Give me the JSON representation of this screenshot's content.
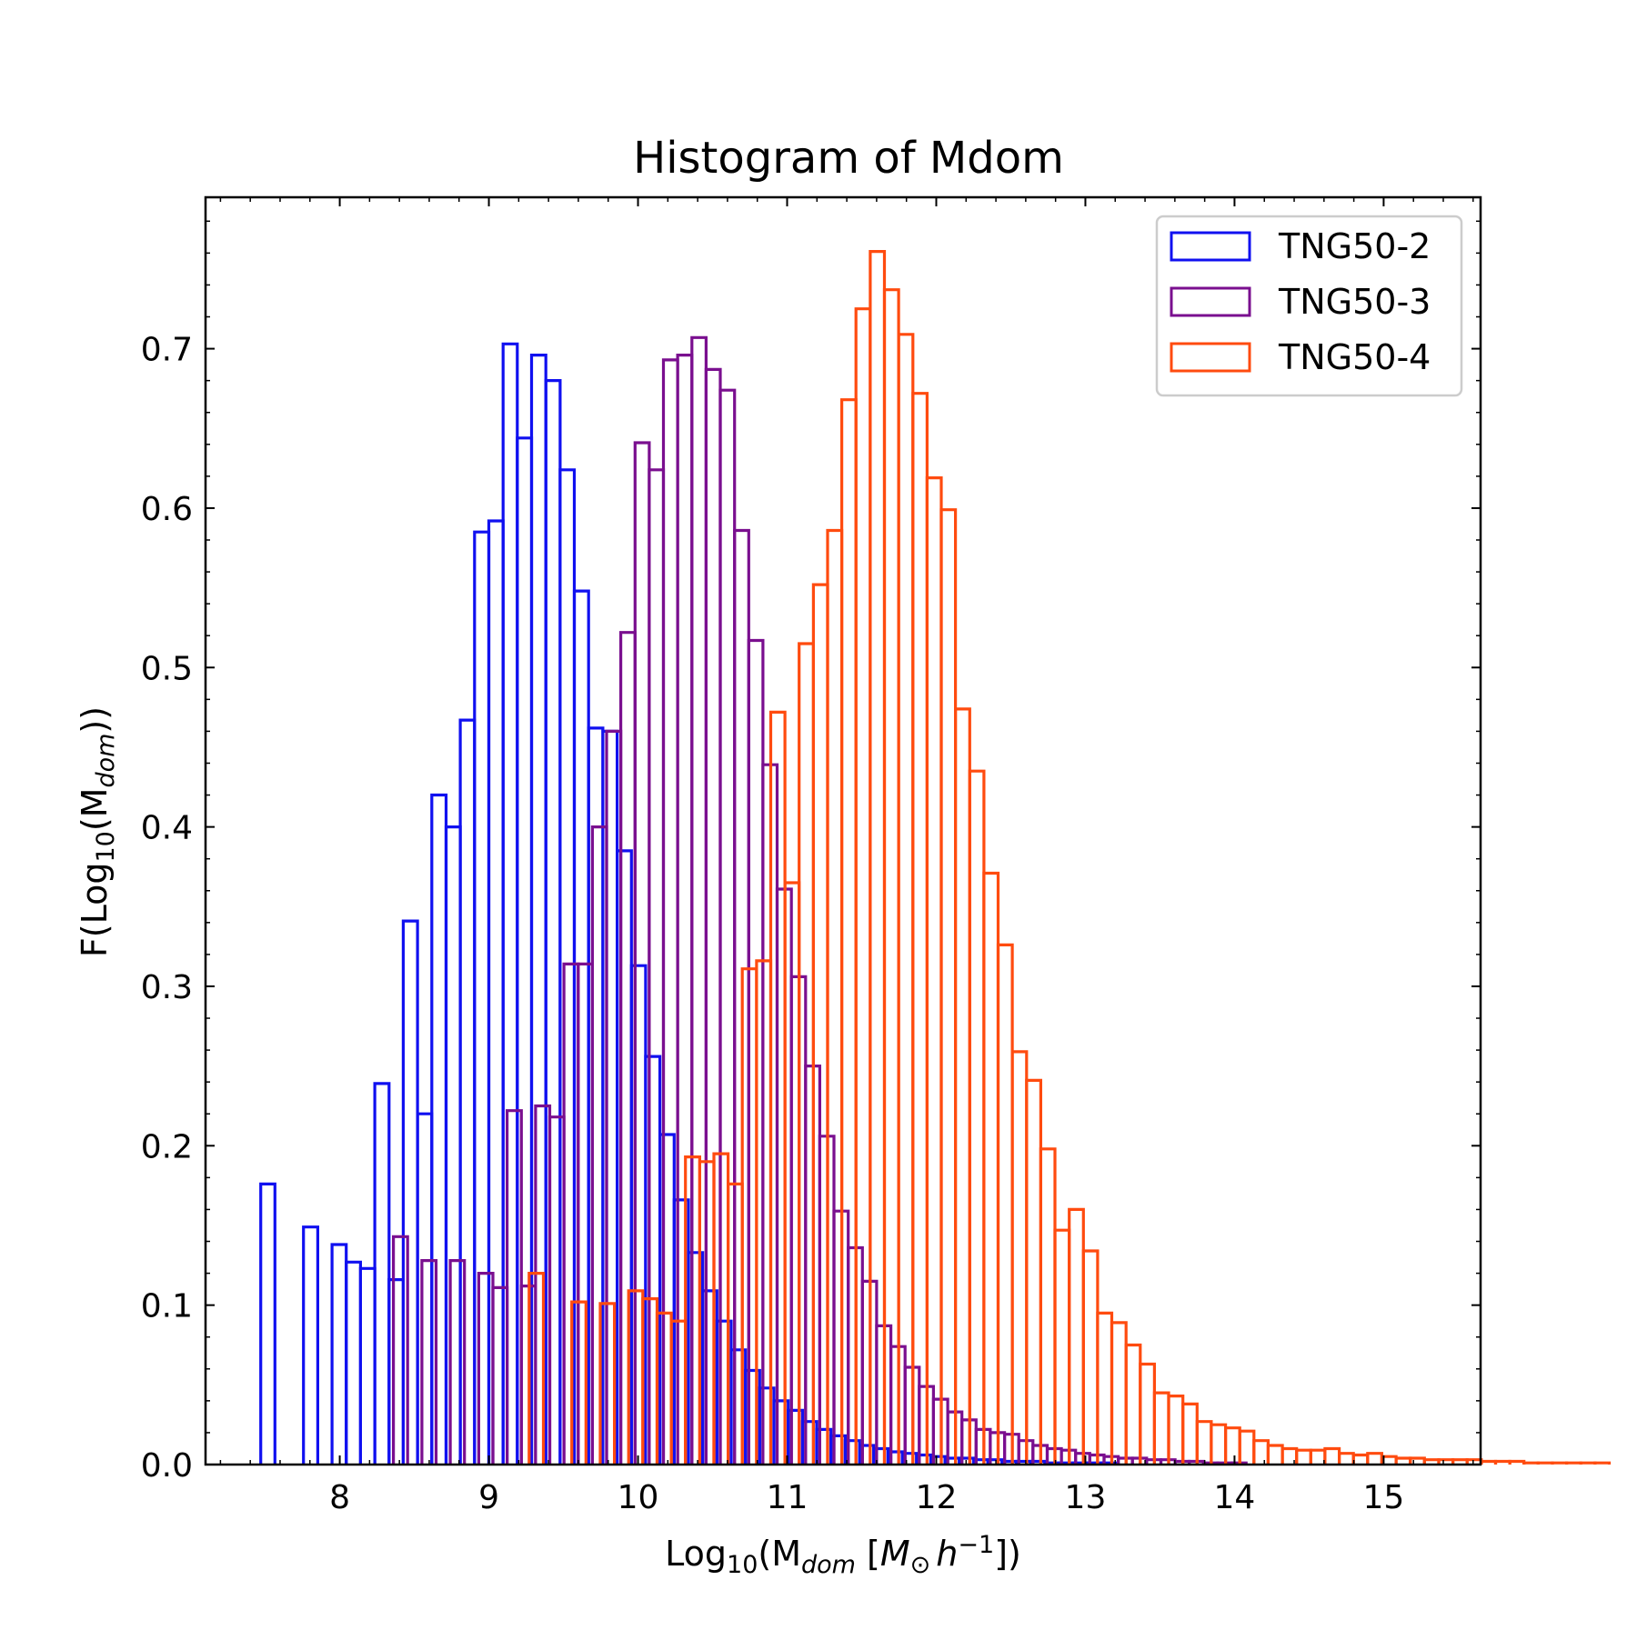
{
  "chart_data": {
    "type": "step-histogram",
    "title": "Histogram of Mdom",
    "xlabel": {
      "pre": "Log",
      "sub1": "10",
      "mid": "(M",
      "sub2": "dom",
      "mid2": " [",
      "ital1": "M",
      "sym": "⊙",
      "ital2": "h",
      "sup": "−1",
      "post": "])"
    },
    "ylabel": {
      "pre": "F(Log",
      "sub1": "10",
      "mid": "(M",
      "sub2": "dom",
      "post": "))"
    },
    "xlim": [
      7.1,
      15.65
    ],
    "ylim": [
      0.0,
      0.795
    ],
    "xticks": [
      8,
      9,
      10,
      11,
      12,
      13,
      14,
      15
    ],
    "yticks": [
      0.0,
      0.1,
      0.2,
      0.3,
      0.4,
      0.5,
      0.6,
      0.7
    ],
    "ytick_labels": [
      "0.0",
      "0.1",
      "0.2",
      "0.3",
      "0.4",
      "0.5",
      "0.6",
      "0.7"
    ],
    "legend_position": "upper right",
    "series": [
      {
        "name": "TNG50-2",
        "color": "#1010f0",
        "bin_start": 7.47,
        "bin_width": 0.0956,
        "values": [
          0.176,
          0.0,
          0.0,
          0.149,
          0.0,
          0.138,
          0.127,
          0.123,
          0.239,
          0.116,
          0.341,
          0.22,
          0.42,
          0.4,
          0.467,
          0.585,
          0.592,
          0.703,
          0.644,
          0.696,
          0.68,
          0.624,
          0.548,
          0.462,
          0.46,
          0.385,
          0.313,
          0.256,
          0.207,
          0.166,
          0.133,
          0.109,
          0.09,
          0.072,
          0.059,
          0.048,
          0.04,
          0.034,
          0.027,
          0.022,
          0.018,
          0.015,
          0.012,
          0.01,
          0.008,
          0.007,
          0.006,
          0.005,
          0.004,
          0.004,
          0.003,
          0.003,
          0.002,
          0.002,
          0.002,
          0.001,
          0.001,
          0.001,
          0.001,
          0.001,
          0.0,
          0.0,
          0.0,
          0.0,
          0.0
        ]
      },
      {
        "name": "TNG50-3",
        "color": "#7a0f8f",
        "bin_start": 8.36,
        "bin_width": 0.0953,
        "values": [
          0.143,
          0.0,
          0.128,
          0.0,
          0.128,
          0.0,
          0.12,
          0.111,
          0.222,
          0.112,
          0.225,
          0.218,
          0.314,
          0.314,
          0.4,
          0.46,
          0.522,
          0.641,
          0.624,
          0.693,
          0.696,
          0.707,
          0.687,
          0.674,
          0.586,
          0.517,
          0.439,
          0.361,
          0.306,
          0.25,
          0.206,
          0.159,
          0.136,
          0.115,
          0.087,
          0.074,
          0.061,
          0.049,
          0.041,
          0.033,
          0.028,
          0.022,
          0.02,
          0.019,
          0.015,
          0.012,
          0.01,
          0.009,
          0.007,
          0.006,
          0.005,
          0.004,
          0.004,
          0.003,
          0.003,
          0.002,
          0.002,
          0.001,
          0.001,
          0.001,
          0.0
        ]
      },
      {
        "name": "TNG50-4",
        "color": "#ff4b0f",
        "bin_start": 9.27,
        "bin_width": 0.0953,
        "values": [
          0.12,
          0.0,
          0.0,
          0.102,
          0.0,
          0.101,
          0.0,
          0.109,
          0.104,
          0.095,
          0.09,
          0.193,
          0.19,
          0.195,
          0.176,
          0.311,
          0.316,
          0.472,
          0.365,
          0.515,
          0.552,
          0.586,
          0.668,
          0.725,
          0.761,
          0.737,
          0.709,
          0.672,
          0.619,
          0.599,
          0.474,
          0.435,
          0.371,
          0.326,
          0.259,
          0.241,
          0.198,
          0.147,
          0.16,
          0.134,
          0.095,
          0.089,
          0.075,
          0.063,
          0.045,
          0.043,
          0.038,
          0.027,
          0.025,
          0.023,
          0.021,
          0.015,
          0.012,
          0.01,
          0.009,
          0.009,
          0.01,
          0.007,
          0.006,
          0.007,
          0.005,
          0.004,
          0.004,
          0.003,
          0.003,
          0.003,
          0.003,
          0.002,
          0.002,
          0.002,
          0.001,
          0.001,
          0.001,
          0.001,
          0.001,
          0.001,
          0.0
        ]
      }
    ]
  }
}
